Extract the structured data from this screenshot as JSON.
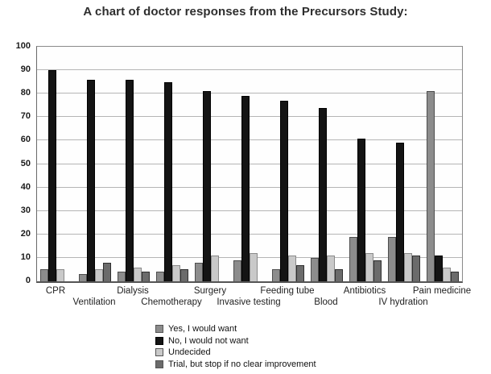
{
  "title": "A chart of doctor responses from the Precursors Study:",
  "chart_data": {
    "type": "bar",
    "title": "A chart of doctor responses from the Precursors Study:",
    "categories": [
      "CPR",
      "Ventilation",
      "Dialysis",
      "Chemotherapy",
      "Surgery",
      "Invasive testing",
      "Feeding tube",
      "Blood",
      "Antibiotics",
      "IV hydration",
      "Pain medicine"
    ],
    "series": [
      {
        "name": "Yes, I would want",
        "color": "#8c8c8c",
        "border_color": "#4d4d4d",
        "values": [
          5,
          3,
          4,
          4,
          8,
          9,
          5,
          10,
          19,
          19,
          81
        ]
      },
      {
        "name": "No, I would not want",
        "color": "#141414",
        "border_color": "#000000",
        "values": [
          90,
          86,
          86,
          85,
          81,
          79,
          77,
          74,
          61,
          59,
          11
        ]
      },
      {
        "name": "Undecided",
        "color": "#c9c9c9",
        "border_color": "#8a8a8a",
        "values": [
          5,
          5,
          6,
          7,
          11,
          12,
          11,
          11,
          12,
          12,
          6
        ]
      },
      {
        "name": "Trial, but stop if no clear improvement",
        "color": "#6b6b6b",
        "border_color": "#2e2e2e",
        "values": [
          0,
          8,
          4,
          5,
          0,
          0,
          7,
          5,
          9,
          11,
          4
        ]
      }
    ],
    "xlabel": "",
    "ylabel": "",
    "ylim": [
      0,
      100
    ],
    "ytick_step": 10,
    "grid": true,
    "grid_color": "#b5b5b5",
    "legend_position": "bottom",
    "background_color": "#ffffff"
  }
}
